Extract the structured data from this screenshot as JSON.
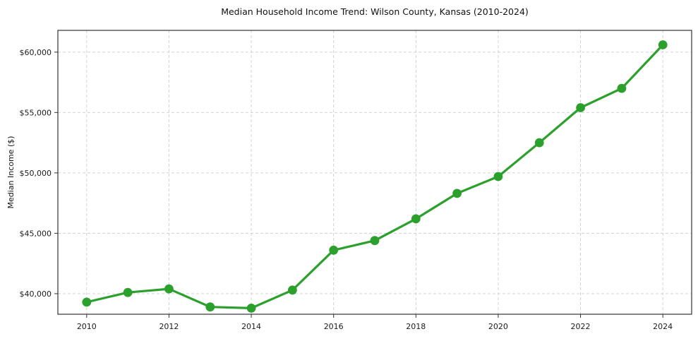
{
  "chart_data": {
    "type": "line",
    "title": "Median Household Income Trend: Wilson County, Kansas (2010-2024)",
    "xlabel": "",
    "ylabel": "Median Income ($)",
    "x": [
      2010,
      2011,
      2012,
      2013,
      2014,
      2015,
      2016,
      2017,
      2018,
      2019,
      2020,
      2021,
      2022,
      2023,
      2024
    ],
    "values": [
      39300,
      40100,
      40400,
      38900,
      38800,
      40300,
      43600,
      44400,
      46200,
      48300,
      49700,
      52500,
      55400,
      57000,
      60600
    ],
    "x_ticks": [
      {
        "value": 2010,
        "label": "2010"
      },
      {
        "value": 2012,
        "label": "2012"
      },
      {
        "value": 2014,
        "label": "2014"
      },
      {
        "value": 2016,
        "label": "2016"
      },
      {
        "value": 2018,
        "label": "2018"
      },
      {
        "value": 2020,
        "label": "2020"
      },
      {
        "value": 2022,
        "label": "2022"
      },
      {
        "value": 2024,
        "label": "2024"
      }
    ],
    "y_ticks": [
      {
        "value": 40000,
        "label": "$40,000"
      },
      {
        "value": 45000,
        "label": "$45,000"
      },
      {
        "value": 50000,
        "label": "$50,000"
      },
      {
        "value": 55000,
        "label": "$55,000"
      },
      {
        "value": 60000,
        "label": "$60,000"
      }
    ],
    "xlim": [
      2009.3,
      2024.7
    ],
    "ylim": [
      38300,
      61800
    ],
    "grid": true,
    "grid_style": "dashed",
    "legend": "none",
    "colors": {
      "line": "#2ca02c",
      "marker": "#2ca02c",
      "grid": "#cdcdcd",
      "spine": "#333333",
      "background": "#ffffff",
      "text": "#1a1a1a"
    }
  }
}
